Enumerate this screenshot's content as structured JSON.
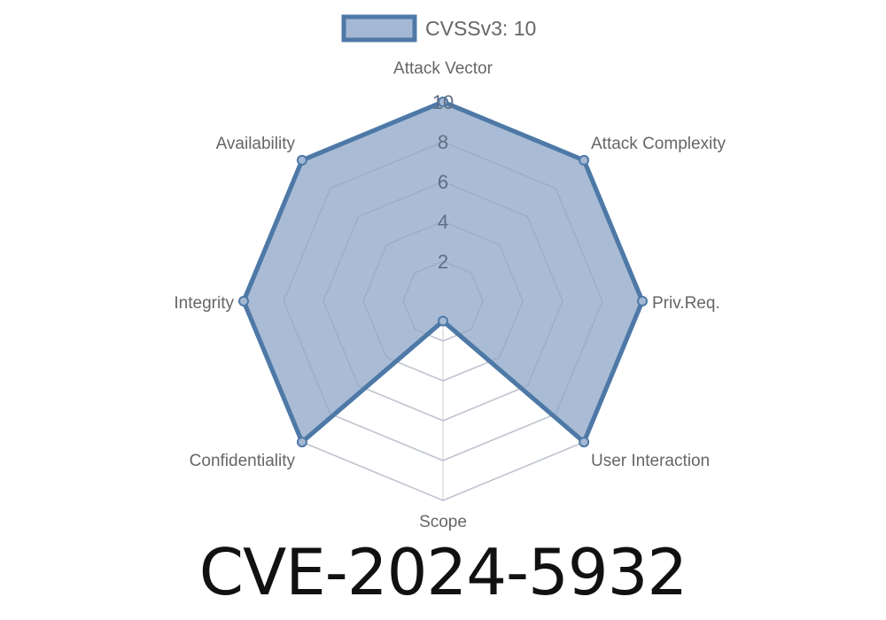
{
  "title": "CVE-2024-5932",
  "chart_data": {
    "type": "radar",
    "legend": {
      "label": "CVSSv3: 10",
      "placement": "top"
    },
    "axes": [
      "Attack Vector",
      "Attack Complexity",
      "Priv.Req.",
      "User Interaction",
      "Scope",
      "Confidentiality",
      "Integrity",
      "Availability"
    ],
    "series": [
      {
        "name": "CVSSv3: 10",
        "values": [
          10,
          10,
          10,
          10,
          1,
          10,
          10,
          10
        ]
      }
    ],
    "rlim": [
      0,
      10
    ],
    "ticks": [
      "2",
      "4",
      "6",
      "8",
      "10"
    ],
    "grid": true,
    "colors": {
      "line": "#4e79a7",
      "fill": "#a5b8d3",
      "grid": "#dddddd",
      "label": "#666666"
    }
  }
}
